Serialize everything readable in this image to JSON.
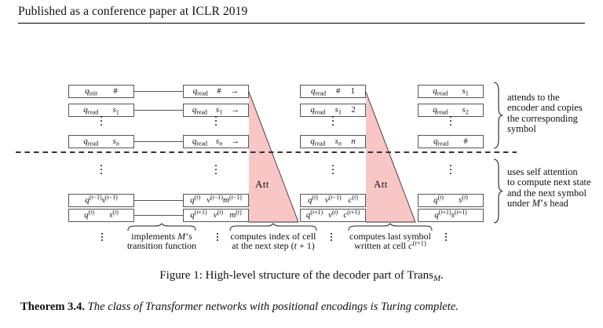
{
  "page": {
    "header": "Published as a conference paper at ICLR 2019"
  },
  "figure": {
    "attention": {
      "label": "Att",
      "fill": "#f9c6c6"
    },
    "top_section": {
      "columns": [
        {
          "cells": [
            [
              "q_{init}",
              "#"
            ],
            [
              "q_{read}",
              "s_{1}"
            ],
            [
              "q_{read}",
              "s_{n}"
            ]
          ]
        },
        {
          "cells": [
            [
              "q_{read}",
              "#",
              "→"
            ],
            [
              "q_{read}",
              "s_{1}",
              "→"
            ],
            [
              "q_{read}",
              "s_{n}",
              "→"
            ]
          ]
        },
        {
          "cells": [
            [
              "q_{read}",
              "#",
              "1"
            ],
            [
              "q_{read}",
              "s_{1}",
              "2"
            ],
            [
              "q_{read}",
              "s_{n}",
              "n"
            ]
          ]
        },
        {
          "cells": [
            [
              "q_{read}",
              "s_{1}"
            ],
            [
              "q_{read}",
              "s_{2}"
            ],
            [
              "q_{read}",
              "#"
            ]
          ]
        }
      ]
    },
    "bottom_section": {
      "columns": [
        {
          "cells": [
            [
              "q^{(t−1)}s^{(t−1)}"
            ],
            [
              "q^{(t)}",
              "s^{(t)}"
            ]
          ]
        },
        {
          "cells": [
            [
              "q^{(t)}",
              "v^{(t−1)}m^{(t−1)}"
            ],
            [
              "q^{(t+1)}",
              "v^{(t)}",
              "m^{(t)}"
            ]
          ]
        },
        {
          "cells": [
            [
              "q^{(t)}",
              "v^{(t−1)}",
              "c^{(t)}"
            ],
            [
              "q^{(t+1)}",
              "v^{(t)}",
              "c^{(t+1)}"
            ]
          ]
        },
        {
          "cells": [
            [
              "q^{(t)}",
              "s^{(t)}"
            ],
            [
              "q^{(t+1)}s^{(t+1)}"
            ]
          ]
        }
      ]
    },
    "bottom_annotations": [
      {
        "lines": [
          "implements M’s",
          "transition function"
        ]
      },
      {
        "lines": [
          "computes index of cell",
          "at the next step (t + 1)"
        ]
      },
      {
        "lines": [
          "computes last symbol",
          "written at cell c^{(t+1)}"
        ]
      }
    ],
    "right_annotations": [
      {
        "lines": [
          "attends to the",
          "encoder and copies",
          "the corresponding",
          "symbol"
        ]
      },
      {
        "lines": [
          "uses self attention",
          "to compute next state",
          "and the next symbol",
          "under M’s head"
        ]
      }
    ],
    "caption": "Figure 1: High-level structure of the decoder part of Trans_{M}."
  },
  "theorem": {
    "label": "Theorem 3.4.",
    "body": "The class of Transformer networks with positional encodings is Turing complete."
  }
}
